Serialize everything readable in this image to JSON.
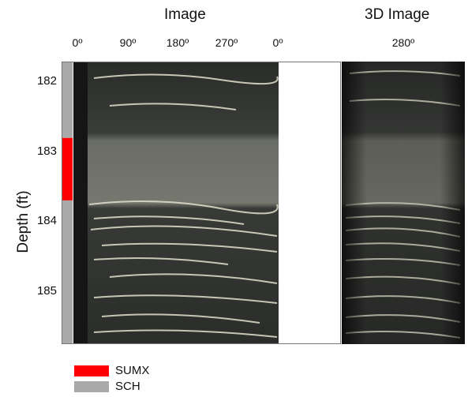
{
  "titles": {
    "image": "Image",
    "image3d": "3D Image"
  },
  "angles": [
    "0º",
    "90º",
    "180º",
    "270º",
    "0º"
  ],
  "angle3d": "280º",
  "ylabel": "Depth (ft)",
  "depth_ticks": [
    "182",
    "183",
    "184",
    "185"
  ],
  "track": {
    "top_ft": 181.65,
    "bottom_ft": 185.72,
    "segments": [
      {
        "label": "SCH",
        "from_ft": 181.65,
        "to_ft": 182.75,
        "color": "#a9a9a9"
      },
      {
        "label": "SUMX",
        "from_ft": 182.75,
        "to_ft": 183.65,
        "color": "#ff0000"
      },
      {
        "label": "SCH",
        "from_ft": 183.65,
        "to_ft": 185.72,
        "color": "#a9a9a9"
      }
    ]
  },
  "legend": [
    {
      "label": "SUMX",
      "color": "#ff0000"
    },
    {
      "label": "SCH",
      "color": "#a9a9a9"
    }
  ]
}
